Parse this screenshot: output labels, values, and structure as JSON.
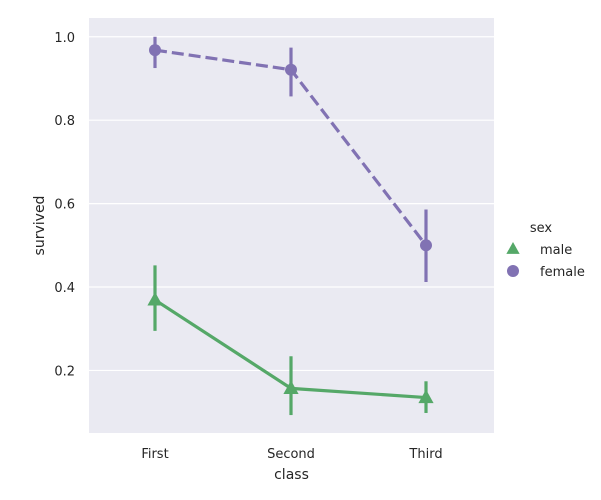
{
  "chart_data": {
    "type": "line",
    "categories": [
      "First",
      "Second",
      "Third"
    ],
    "xlabel": "class",
    "ylabel": "survived",
    "ylim": [
      0.05,
      1.045
    ],
    "yticks": [
      0.2,
      0.4,
      0.6,
      0.8,
      1.0
    ],
    "ytick_labels": [
      "0.2",
      "0.4",
      "0.6",
      "0.8",
      "1.0"
    ],
    "grid": true,
    "legend": {
      "title": "sex",
      "placement": "right"
    },
    "series": [
      {
        "name": "male",
        "values": [
          0.369,
          0.157,
          0.135
        ],
        "ci": [
          [
            0.295,
            0.452
          ],
          [
            0.093,
            0.234
          ],
          [
            0.098,
            0.174
          ]
        ],
        "color": "#55a868",
        "marker": "triangle",
        "linestyle": "solid"
      },
      {
        "name": "female",
        "values": [
          0.968,
          0.921,
          0.5
        ],
        "ci": [
          [
            0.925,
            1.0
          ],
          [
            0.857,
            0.974
          ],
          [
            0.412,
            0.586
          ]
        ],
        "color": "#8172b3",
        "marker": "circle",
        "linestyle": "dashed"
      }
    ]
  }
}
